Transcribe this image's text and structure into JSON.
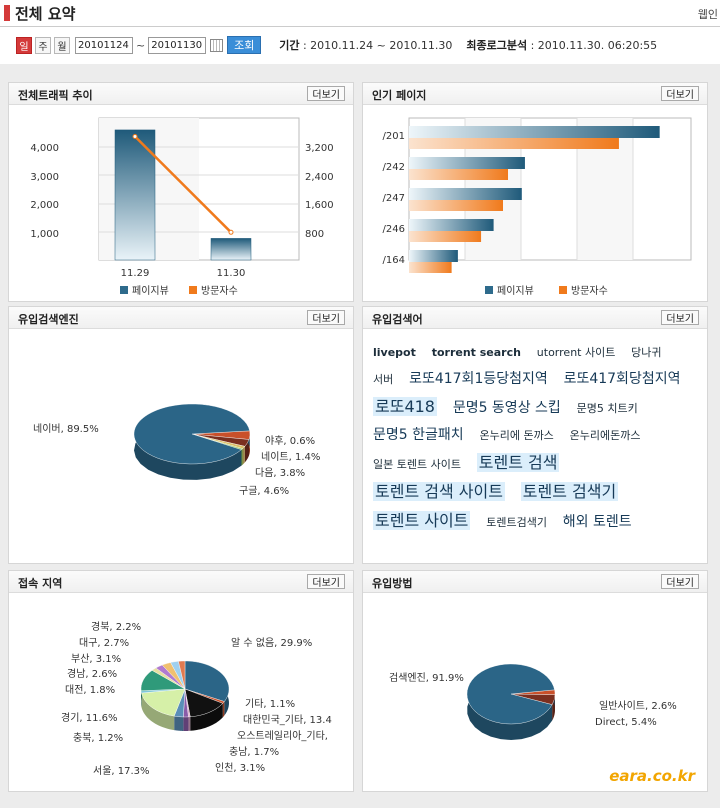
{
  "page": {
    "title": "전체 요약",
    "top_right": "웹인"
  },
  "controls": {
    "period_buttons": [
      "일",
      "주",
      "월"
    ],
    "start_date": "20101124",
    "end_date": "20101130",
    "tilde": "~",
    "query_button": "조회",
    "period_label": "기간",
    "period_value": ": 2010.11.24 ~ 2010.11.30",
    "last_log_label": "최종로그분석",
    "last_log_value": ": 2010.11.30. 06:20:55"
  },
  "more_label": "더보기",
  "traffic": {
    "title": "전체트래픽 추이",
    "chart_data": {
      "type": "bar",
      "categories": [
        "11.29",
        "11.30"
      ],
      "series": [
        {
          "name": "페이지뷰",
          "values": [
            4580,
            760
          ],
          "axis": "left",
          "color": "#2e6b8c"
        },
        {
          "name": "방문자수",
          "values": [
            3480,
            780
          ],
          "axis": "right",
          "color": "#f07a1c"
        }
      ],
      "ylim_left": [
        0,
        5000
      ],
      "ylim_right": [
        0,
        4000
      ],
      "yticks_left": [
        "1,000",
        "2,000",
        "3,000",
        "4,000"
      ],
      "yticks_right": [
        "800",
        "1,600",
        "2,400",
        "3,200"
      ],
      "legend": [
        "페이지뷰",
        "방문자수"
      ]
    }
  },
  "popular": {
    "title": "인기 페이지",
    "chart_data": {
      "type": "bar",
      "orientation": "horizontal",
      "categories": [
        "/201",
        "/242",
        "/247",
        "/246",
        "/164"
      ],
      "series": [
        {
          "name": "페이지뷰",
          "values": [
            4000,
            1850,
            1800,
            1350,
            780
          ]
        },
        {
          "name": "방문자수",
          "values": [
            3350,
            1580,
            1500,
            1150,
            680
          ]
        }
      ],
      "legend": [
        "페이지뷰",
        "방문자수"
      ]
    }
  },
  "engines": {
    "title": "유입검색엔진",
    "chart_data": {
      "type": "pie",
      "slices": [
        {
          "label": "네이버, 89.5%",
          "value": 89.5,
          "color": "#2b6587"
        },
        {
          "label": "구글, 4.6%",
          "value": 4.6,
          "color": "#c9502a"
        },
        {
          "label": "다음, 3.8%",
          "value": 3.8,
          "color": "#7b2f1f"
        },
        {
          "label": "네이트, 1.4%",
          "value": 1.4,
          "color": "#dcbf69"
        },
        {
          "label": "야후, 0.6%",
          "value": 0.6,
          "color": "#88c54a"
        }
      ]
    }
  },
  "keywords": {
    "title": "유입검색어",
    "items": [
      {
        "text": "livepot",
        "size": "s b"
      },
      {
        "text": "torrent search",
        "size": "s b"
      },
      {
        "text": "utorrent 사이트",
        "size": "s"
      },
      {
        "text": "당나귀",
        "size": "s"
      },
      {
        "text": "서버",
        "size": "s"
      },
      {
        "text": "로또417회1등당첨지역",
        "size": "l"
      },
      {
        "text": "로또417회당첨지역",
        "size": "l"
      },
      {
        "text": "로또418",
        "size": "xl"
      },
      {
        "text": "문명5 동영상 스킵",
        "size": "l"
      },
      {
        "text": "문명5 치트키",
        "size": "s"
      },
      {
        "text": "문명5 한글패치",
        "size": "l"
      },
      {
        "text": "온누리에 돈까스",
        "size": "s"
      },
      {
        "text": "온누리에돈까스",
        "size": "s"
      },
      {
        "text": "일본 토렌트 사이트",
        "size": "s"
      },
      {
        "text": "토렌트 검색",
        "size": "xl"
      },
      {
        "text": "토렌트 검색 사이트",
        "size": "xl"
      },
      {
        "text": "토렌트 검색기",
        "size": "xl"
      },
      {
        "text": "토렌트 사이트",
        "size": "xl"
      },
      {
        "text": "토렌트검색기",
        "size": "s"
      },
      {
        "text": "해외 토렌트",
        "size": "l"
      }
    ]
  },
  "regions": {
    "title": "접속 지역",
    "chart_data": {
      "type": "pie",
      "slices": [
        {
          "label": "알 수 없음, 29.9%",
          "value": 29.9,
          "color": "#2b6587"
        },
        {
          "label": "기타, 1.1%",
          "value": 1.1,
          "color": "#c9502a"
        },
        {
          "label": "대한민국_기타, 13.4",
          "value": 13.4,
          "color": "#111111"
        },
        {
          "label": "오스트레일리아_기타,",
          "value": 0.6,
          "color": "#d9a5c8"
        },
        {
          "label": "충남, 1.7%",
          "value": 1.7,
          "color": "#8a5ba8"
        },
        {
          "label": "인천, 3.1%",
          "value": 3.1,
          "color": "#5a8fb8"
        },
        {
          "label": "서울, 17.3%",
          "value": 17.3,
          "color": "#d6f0a8"
        },
        {
          "label": "충북, 1.2%",
          "value": 1.2,
          "color": "#7fc7d8"
        },
        {
          "label": "경기, 11.6%",
          "value": 11.6,
          "color": "#2f9a7a"
        },
        {
          "label": "대전, 1.8%",
          "value": 1.8,
          "color": "#e6e0a0"
        },
        {
          "label": "경남, 2.6%",
          "value": 2.6,
          "color": "#b07ad0"
        },
        {
          "label": "부산, 3.1%",
          "value": 3.1,
          "color": "#f0c070"
        },
        {
          "label": "대구, 2.7%",
          "value": 2.7,
          "color": "#9fd0ef"
        },
        {
          "label": "경북, 2.2%",
          "value": 2.2,
          "color": "#e07a50"
        }
      ]
    }
  },
  "methods": {
    "title": "유입방법",
    "chart_data": {
      "type": "pie",
      "slices": [
        {
          "label": "검색엔진, 91.9%",
          "value": 91.9,
          "color": "#2b6587"
        },
        {
          "label": "일반사이트, 2.6%",
          "value": 2.6,
          "color": "#c9502a"
        },
        {
          "label": "Direct, 5.4%",
          "value": 5.4,
          "color": "#7b2f1f"
        }
      ]
    }
  },
  "watermark": "eara.co.kr"
}
